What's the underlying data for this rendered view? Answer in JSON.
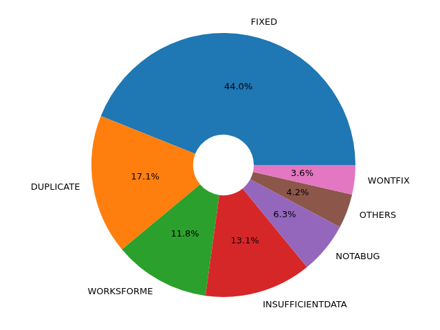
{
  "chart_data": {
    "type": "doughnut",
    "categories": [
      "FIXED",
      "DUPLICATE",
      "WORKSFORME",
      "INSUFFICIENTDATA",
      "NOTABUG",
      "OTHERS",
      "WONTFIX"
    ],
    "values": [
      44.0,
      17.1,
      11.8,
      13.1,
      6.3,
      4.2,
      3.6
    ],
    "value_labels": [
      "44.0%",
      "17.1%",
      "11.8%",
      "13.1%",
      "6.3%",
      "4.2%",
      "3.6%"
    ],
    "colors": [
      "#1f77b4",
      "#ff7f0e",
      "#2ca02c",
      "#d62728",
      "#9467bd",
      "#8c564b",
      "#e377c2"
    ],
    "data_labels": true
  }
}
